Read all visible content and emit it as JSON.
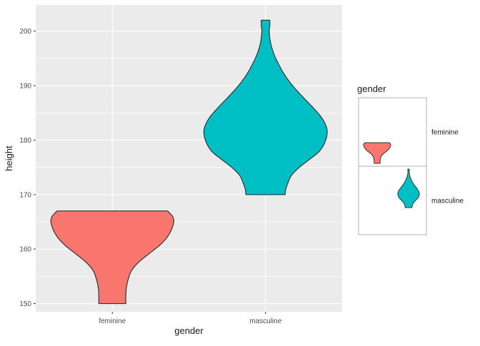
{
  "chart_data": {
    "type": "violin",
    "xlabel": "gender",
    "ylabel": "height",
    "categories": [
      "feminine",
      "masculine"
    ],
    "ylim": [
      148.5,
      204.8
    ],
    "yticks": [
      150,
      160,
      170,
      180,
      190,
      200
    ],
    "grid": true,
    "legend_position": "right",
    "legend": {
      "title": "gender",
      "entries": [
        "feminine",
        "masculine"
      ]
    },
    "series": [
      {
        "category": "feminine",
        "color": "#F8766D",
        "min": 150,
        "max": 167,
        "profile": [
          [
            150,
            0.22
          ],
          [
            151.5,
            0.22
          ],
          [
            153,
            0.23
          ],
          [
            154.5,
            0.26
          ],
          [
            156,
            0.31
          ],
          [
            157.5,
            0.42
          ],
          [
            159,
            0.58
          ],
          [
            160.5,
            0.75
          ],
          [
            162,
            0.88
          ],
          [
            163.5,
            0.96
          ],
          [
            165,
            1.0
          ],
          [
            166,
            0.98
          ],
          [
            167,
            0.9
          ]
        ]
      },
      {
        "category": "masculine",
        "color": "#00BFC4",
        "min": 170,
        "max": 202,
        "profile": [
          [
            170,
            0.32
          ],
          [
            171,
            0.33
          ],
          [
            172,
            0.36
          ],
          [
            173.5,
            0.42
          ],
          [
            175,
            0.55
          ],
          [
            176.5,
            0.72
          ],
          [
            178,
            0.88
          ],
          [
            180,
            0.98
          ],
          [
            182,
            1.0
          ],
          [
            184,
            0.92
          ],
          [
            186,
            0.77
          ],
          [
            188,
            0.6
          ],
          [
            190,
            0.44
          ],
          [
            192,
            0.31
          ],
          [
            194,
            0.21
          ],
          [
            196,
            0.13
          ],
          [
            198,
            0.08
          ],
          [
            200,
            0.06
          ],
          [
            201,
            0.07
          ],
          [
            202,
            0.07
          ]
        ]
      }
    ]
  }
}
